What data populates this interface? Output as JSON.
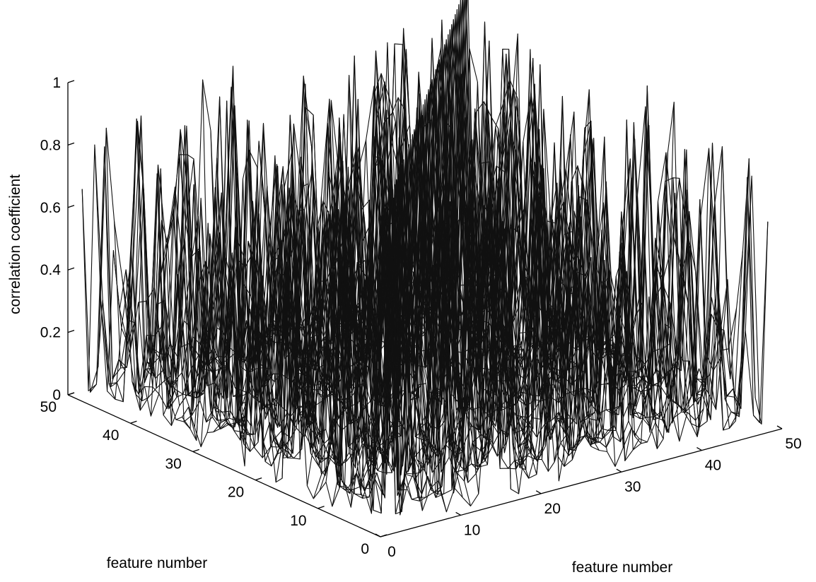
{
  "chart_data": {
    "type": "surface-mesh",
    "title": "",
    "xlabel": "feature number",
    "ylabel": "feature number",
    "zlabel": "correlation coefficient",
    "xlim": [
      0,
      50
    ],
    "ylim": [
      0,
      50
    ],
    "zlim": [
      0,
      1
    ],
    "x_ticks": [
      "0",
      "10",
      "20",
      "30",
      "40",
      "50"
    ],
    "y_ticks": [
      "0",
      "10",
      "20",
      "30",
      "40",
      "50"
    ],
    "z_ticks": [
      "0",
      "0.2",
      "0.4",
      "0.6",
      "0.8",
      "1"
    ],
    "grid_size": [
      49,
      49
    ],
    "diagonal_value": 1,
    "off_diagonal_range": [
      0,
      0.95
    ],
    "mesh_color": "#111111",
    "background": "#ffffff"
  }
}
